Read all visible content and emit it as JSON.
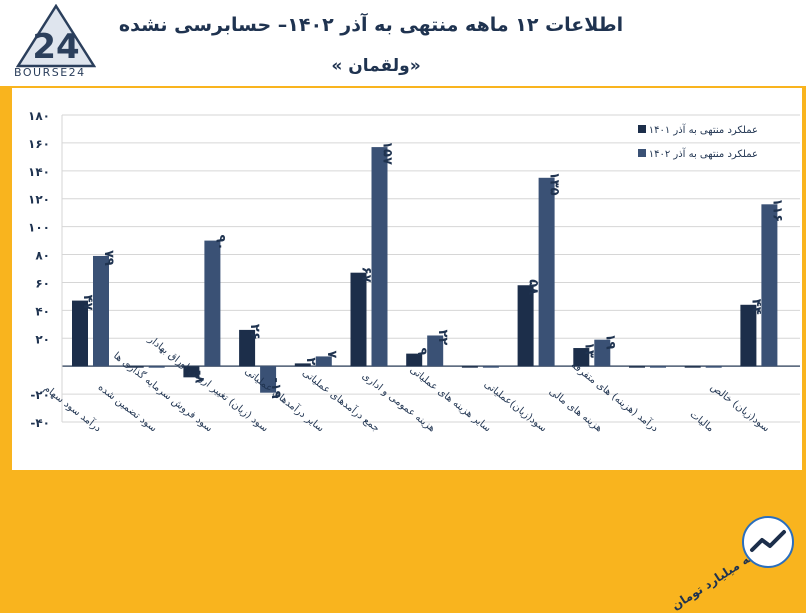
{
  "header": {
    "title": "اطلاعات ۱۲ ماهه منتهی به آذر ۱۴۰۲– حسابرسی نشده",
    "subtitle": "«ولقمان »",
    "logo_text": "BOURSE24",
    "logo_mark": "24"
  },
  "footer": {
    "units": "ارقام به میلیارد تومان"
  },
  "colors": {
    "series_1401": "#1c2e4a",
    "series_1402": "#3a5175",
    "background": "#f9b41e",
    "plot_background": "#ffffff"
  },
  "chart_data": {
    "type": "bar",
    "ylim": [
      -40,
      180
    ],
    "yticks": [
      -40,
      -20,
      20,
      40,
      60,
      80,
      100,
      120,
      140,
      160,
      180
    ],
    "ytick_labels": [
      "-۴۰",
      "-۲۰",
      "۲۰",
      "۴۰",
      "۶۰",
      "۸۰",
      "۱۰۰",
      "۱۲۰",
      "۱۴۰",
      "۱۶۰",
      "۱۸۰"
    ],
    "grid": true,
    "legend_position": "top-right",
    "categories": [
      "درآمد سود سهام",
      "سود تضمین شده",
      "سود فروش سرمایه گذاری ها",
      "سود (زیان) تغییر ارزش اوراق بهادار",
      "سایر درآمدهای عملیاتی",
      "جمع درآمدهای عملیاتی",
      "هزینه عمومی و اداری",
      "سایر هزینه های عملیاتی",
      "سود(زیان)عملیاتی",
      "هزینه های مالی",
      "درآمد (هزینه) های متفرقه",
      "مالیات",
      "سود(زیان) خالص"
    ],
    "series": [
      {
        "name": "عملکرد منتهی به آذر ۱۴۰۱",
        "values": [
          47,
          0,
          -8,
          26,
          2,
          67,
          9,
          0,
          58,
          13,
          0,
          0,
          44
        ],
        "labels": [
          "۴۷",
          "",
          "-۸",
          "۲۶",
          "۲",
          "۶۷",
          "۹",
          "",
          "۵۸",
          "۱۳",
          "",
          "",
          "۴۴"
        ]
      },
      {
        "name": "عملکرد منتهی به آذر ۱۴۰۲",
        "values": [
          79,
          0,
          90,
          -19,
          7,
          157,
          22,
          0,
          135,
          19,
          0,
          0,
          116
        ],
        "labels": [
          "۷۹",
          "",
          "۹۰",
          "-۱۹",
          "۷",
          "۱۵۷",
          "۲۲",
          "",
          "۱۳۵",
          "۱۹",
          "",
          "",
          "۱۱۶"
        ]
      }
    ]
  }
}
